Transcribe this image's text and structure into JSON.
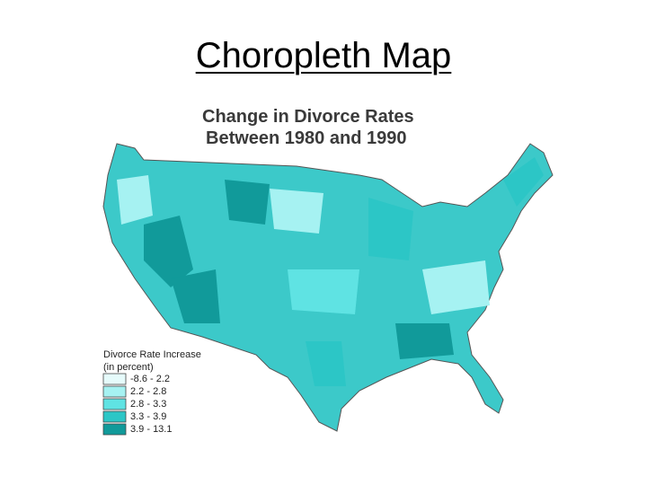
{
  "header": {
    "title": "Choropleth Map"
  },
  "map": {
    "title": [
      "Change in Divorce Rates",
      "Between 1980 and 1990"
    ],
    "legend": {
      "title": [
        "Divorce Rate Increase",
        "(in percent)"
      ],
      "items": [
        {
          "label": "-8.6 - 2.2",
          "color": "#e6fbfb"
        },
        {
          "label": "2.2 - 2.8",
          "color": "#a6f2f2"
        },
        {
          "label": "2.8 - 3.3",
          "color": "#5fe3e3"
        },
        {
          "label": "3.3 - 3.9",
          "color": "#2cc6c6"
        },
        {
          "label": "3.9 - 13.1",
          "color": "#119a9a"
        }
      ]
    }
  }
}
